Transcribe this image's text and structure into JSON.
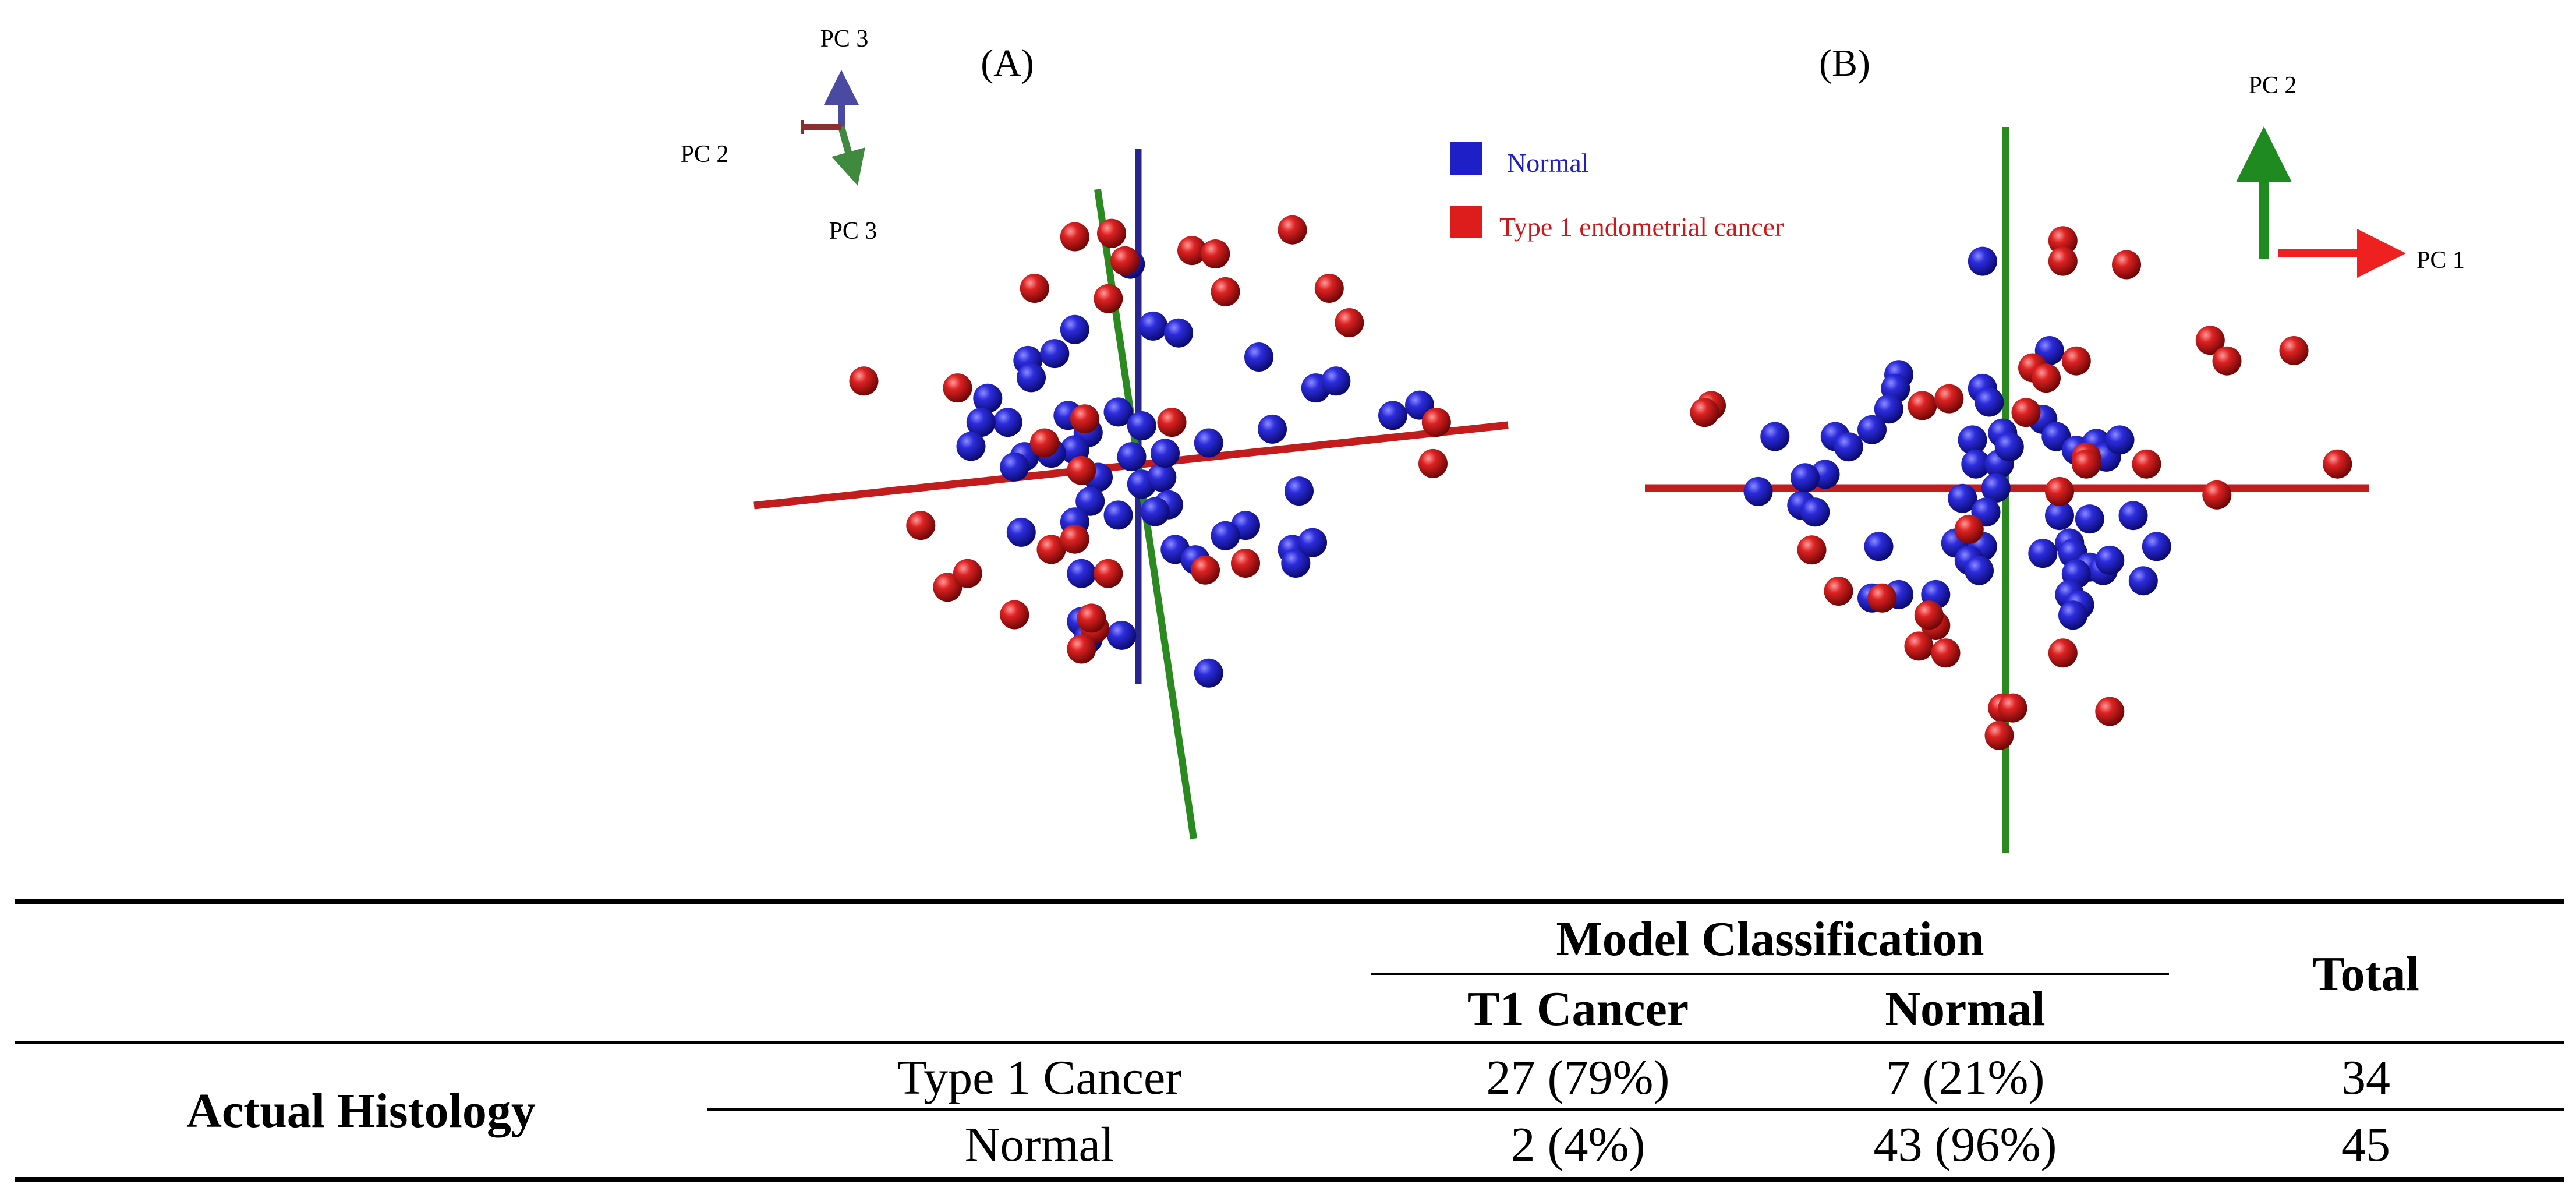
{
  "figure": {
    "panel_a_label": "(A)",
    "panel_b_label": "(B)"
  },
  "colors": {
    "normal": "#1f1fc8",
    "cancer": "#cc1818",
    "axis_green": "#2b8a1f",
    "axis_red": "#c31c1c",
    "axis_blue": "#26268e"
  },
  "chart_data": [
    {
      "type": "scatter",
      "panel": "(A)",
      "title": "",
      "xlabel": "",
      "ylabel": "",
      "orientation_axes": [
        "PC 3",
        "PC 2",
        "PC 3"
      ],
      "legend": null,
      "series": [
        {
          "name": "Normal",
          "color": "#1f1fc8",
          "points": [
            [
              -1.65,
              1.45
            ],
            [
              -1.6,
              1.2
            ],
            [
              -0.12,
              2.85
            ],
            [
              0.22,
              1.95
            ],
            [
              -1.25,
              1.55
            ],
            [
              -0.95,
              1.9
            ],
            [
              -0.3,
              0.7
            ],
            [
              -0.75,
              0.4
            ],
            [
              -0.6,
              -0.25
            ],
            [
              -0.72,
              -0.6
            ],
            [
              -1.05,
              0.65
            ],
            [
              -0.95,
              0.15
            ],
            [
              -1.3,
              0.1
            ],
            [
              -1.7,
              0.05
            ],
            [
              -1.95,
              0.55
            ],
            [
              -2.25,
              0.9
            ],
            [
              -2.35,
              0.55
            ],
            [
              -1.85,
              -0.1
            ],
            [
              -2.5,
              0.2
            ],
            [
              -0.95,
              -0.9
            ],
            [
              -1.75,
              -1.05
            ],
            [
              -0.85,
              -1.65
            ],
            [
              -0.85,
              -2.35
            ],
            [
              -0.3,
              -0.8
            ],
            [
              -0.75,
              -2.6
            ],
            [
              -0.25,
              -2.55
            ],
            [
              0.05,
              0.5
            ],
            [
              -0.1,
              0.05
            ],
            [
              0.05,
              -0.35
            ],
            [
              0.35,
              -0.25
            ],
            [
              0.45,
              -0.65
            ],
            [
              0.25,
              -0.75
            ],
            [
              0.4,
              0.1
            ],
            [
              0.55,
              -1.3
            ],
            [
              0.85,
              -1.45
            ],
            [
              1.05,
              0.25
            ],
            [
              2.0,
              0.45
            ],
            [
              2.4,
              -0.45
            ],
            [
              2.3,
              -1.3
            ],
            [
              2.35,
              -1.5
            ],
            [
              2.6,
              -1.2
            ],
            [
              1.6,
              -0.95
            ],
            [
              2.65,
              1.05
            ],
            [
              2.95,
              1.15
            ],
            [
              3.8,
              0.65
            ],
            [
              4.2,
              0.8
            ],
            [
              1.8,
              1.5
            ],
            [
              0.6,
              1.85
            ],
            [
              1.3,
              -1.1
            ],
            [
              1.05,
              -3.1
            ]
          ]
        },
        {
          "name": "Type 1 endometrial cancer",
          "color": "#cc1818",
          "points": [
            [
              -0.95,
              3.25
            ],
            [
              -0.4,
              3.3
            ],
            [
              -0.2,
              2.9
            ],
            [
              -0.45,
              2.35
            ],
            [
              -1.55,
              2.5
            ],
            [
              0.8,
              3.05
            ],
            [
              1.15,
              3.0
            ],
            [
              2.3,
              3.35
            ],
            [
              1.3,
              2.45
            ],
            [
              2.85,
              2.5
            ],
            [
              3.15,
              2.0
            ],
            [
              -4.1,
              1.15
            ],
            [
              -2.7,
              1.05
            ],
            [
              -1.4,
              0.25
            ],
            [
              -0.8,
              0.6
            ],
            [
              -0.85,
              -0.15
            ],
            [
              0.5,
              0.55
            ],
            [
              4.45,
              0.55
            ],
            [
              4.4,
              -0.05
            ],
            [
              -3.25,
              -0.95
            ],
            [
              -2.85,
              -1.85
            ],
            [
              -1.3,
              -1.3
            ],
            [
              -0.95,
              -1.15
            ],
            [
              -0.45,
              -1.65
            ],
            [
              -0.65,
              -2.45
            ],
            [
              -0.85,
              -2.75
            ],
            [
              -2.55,
              -1.65
            ],
            [
              -1.85,
              -2.25
            ],
            [
              1.0,
              -1.6
            ],
            [
              1.6,
              -1.5
            ],
            [
              -0.7,
              -2.3
            ]
          ]
        }
      ]
    },
    {
      "type": "scatter",
      "panel": "(B)",
      "title": "",
      "xlabel": "PC 1",
      "ylabel": "PC 2",
      "legend": "top-right",
      "series": [
        {
          "name": "Normal",
          "color": "#1f1fc8",
          "points": [
            [
              -0.35,
              3.3
            ],
            [
              0.65,
              2.0
            ],
            [
              -1.6,
              1.65
            ],
            [
              -1.65,
              1.45
            ],
            [
              -1.75,
              1.15
            ],
            [
              -2.0,
              0.85
            ],
            [
              -3.45,
              0.75
            ],
            [
              -2.55,
              0.75
            ],
            [
              -2.7,
              0.2
            ],
            [
              -0.35,
              1.45
            ],
            [
              -0.25,
              1.25
            ],
            [
              -0.5,
              0.7
            ],
            [
              -0.05,
              0.8
            ],
            [
              0.55,
              1.0
            ],
            [
              0.75,
              0.75
            ],
            [
              1.05,
              0.55
            ],
            [
              1.35,
              0.65
            ],
            [
              1.5,
              0.45
            ],
            [
              -0.45,
              0.35
            ],
            [
              -0.1,
              0.35
            ],
            [
              0.05,
              0.6
            ],
            [
              -0.15,
              0.0
            ],
            [
              -0.65,
              -0.15
            ],
            [
              -0.3,
              -0.35
            ],
            [
              -0.75,
              -0.8
            ],
            [
              -0.35,
              -0.85
            ],
            [
              -0.55,
              -1.05
            ],
            [
              -0.4,
              -1.2
            ],
            [
              0.8,
              -0.4
            ],
            [
              1.25,
              -0.45
            ],
            [
              0.95,
              -0.8
            ],
            [
              1.0,
              -0.95
            ],
            [
              0.55,
              -0.95
            ],
            [
              1.25,
              -1.15
            ],
            [
              1.45,
              -1.2
            ],
            [
              1.05,
              -1.25
            ],
            [
              0.95,
              -1.55
            ],
            [
              1.1,
              -1.7
            ],
            [
              1.0,
              -1.85
            ],
            [
              1.9,
              -0.4
            ],
            [
              2.25,
              -0.85
            ],
            [
              2.05,
              -1.35
            ],
            [
              1.55,
              -1.05
            ],
            [
              -3.7,
              -0.05
            ],
            [
              -3.05,
              -0.25
            ],
            [
              -2.85,
              -0.35
            ],
            [
              -1.9,
              -0.85
            ],
            [
              -2.0,
              -1.6
            ],
            [
              -1.6,
              -1.55
            ],
            [
              -1.05,
              -1.55
            ],
            [
              -3.0,
              0.15
            ],
            [
              -2.35,
              0.6
            ],
            [
              1.7,
              0.7
            ]
          ]
        },
        {
          "name": "Type 1 endometrial cancer",
          "color": "#cc1818",
          "points": [
            [
              0.85,
              3.6
            ],
            [
              0.85,
              3.3
            ],
            [
              1.8,
              3.25
            ],
            [
              3.05,
              2.15
            ],
            [
              3.3,
              1.85
            ],
            [
              4.3,
              2.0
            ],
            [
              0.4,
              1.75
            ],
            [
              0.6,
              1.6
            ],
            [
              1.05,
              1.85
            ],
            [
              0.3,
              1.1
            ],
            [
              -1.25,
              1.2
            ],
            [
              -0.85,
              1.3
            ],
            [
              -4.4,
              1.2
            ],
            [
              -4.5,
              1.1
            ],
            [
              1.2,
              0.45
            ],
            [
              1.2,
              0.35
            ],
            [
              2.1,
              0.35
            ],
            [
              3.15,
              -0.1
            ],
            [
              4.95,
              0.35
            ],
            [
              0.8,
              -0.05
            ],
            [
              -0.55,
              -0.6
            ],
            [
              -2.9,
              -0.9
            ],
            [
              -2.5,
              -1.5
            ],
            [
              -1.85,
              -1.6
            ],
            [
              -1.05,
              -2.0
            ],
            [
              -1.15,
              -1.85
            ],
            [
              -1.3,
              -2.3
            ],
            [
              -0.9,
              -2.4
            ],
            [
              0.85,
              -2.4
            ],
            [
              -0.05,
              -3.2
            ],
            [
              0.1,
              -3.2
            ],
            [
              -0.1,
              -3.6
            ],
            [
              1.55,
              -3.25
            ]
          ]
        }
      ]
    }
  ],
  "legend": {
    "items": [
      {
        "label": "Normal",
        "color": "#1f1fc8"
      },
      {
        "label": "Type 1 endometrial cancer",
        "color": "#cc1818"
      }
    ]
  },
  "table": {
    "group_header": "Model Classification",
    "col_headers": [
      "T1 Cancer",
      "Normal"
    ],
    "total_header": "Total",
    "row_group_label": "Actual Histology",
    "rows": [
      {
        "label": "Type 1 Cancer",
        "cells": [
          "27 (79%)",
          "7 (21%)"
        ],
        "total": "34"
      },
      {
        "label": "Normal",
        "cells": [
          "2 (4%)",
          "43 (96%)"
        ],
        "total": "45"
      }
    ]
  }
}
